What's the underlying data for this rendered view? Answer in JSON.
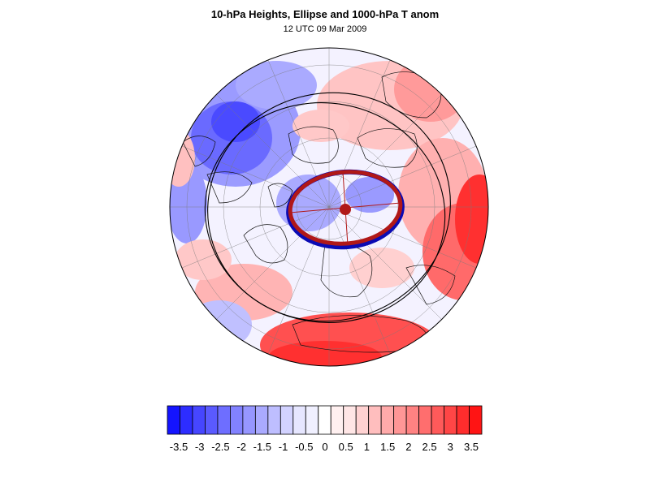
{
  "title": "10-hPa Heights, Ellipse and 1000-hPa T anom",
  "subtitle": "12 UTC 09 Mar 2009",
  "colorbar": {
    "labels": [
      "-3.5",
      "-3",
      "-2.5",
      "-2",
      "-1.5",
      "-1",
      "-0.5",
      "0",
      "0.5",
      "1",
      "1.5",
      "2",
      "2.5",
      "3",
      "3.5"
    ],
    "colors": [
      "#1414ff",
      "#2d2dff",
      "#4646ff",
      "#5a5aff",
      "#6e6eff",
      "#8282ff",
      "#9696ff",
      "#aaaaff",
      "#bebeff",
      "#d2d2ff",
      "#e6e6ff",
      "#f0f0ff",
      "#ffffff",
      "#fff0f0",
      "#ffe6e6",
      "#ffd2d2",
      "#ffbebe",
      "#ffaaaa",
      "#ff9696",
      "#ff8282",
      "#ff6e6e",
      "#ff5a5a",
      "#ff4646",
      "#ff2d2d",
      "#ff1414"
    ]
  },
  "map": {
    "ellipse_color": "#b01818",
    "ellipse_inner_color": "#0a0ab4",
    "contour_color": "#000000"
  }
}
